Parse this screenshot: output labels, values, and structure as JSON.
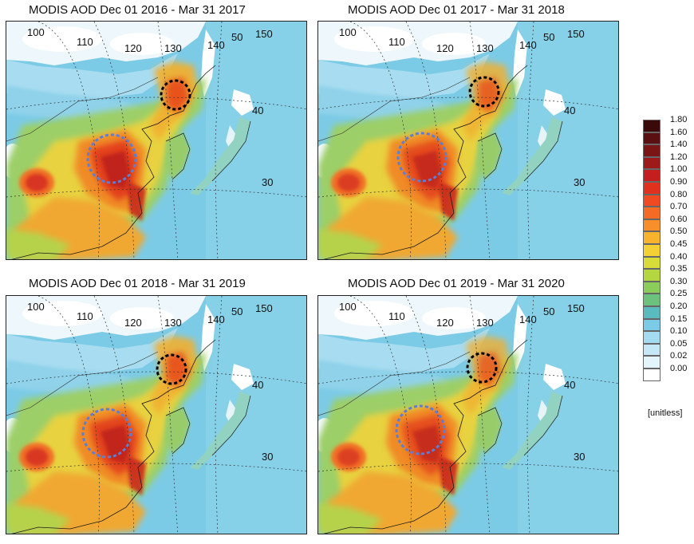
{
  "panels": [
    {
      "title": "MODIS AOD Dec 01 2016 - Mar 31 2017"
    },
    {
      "title": "MODIS AOD Dec 01 2017 - Mar 31 2018"
    },
    {
      "title": "MODIS AOD Dec 01 2018 - Mar 31 2019"
    },
    {
      "title": "MODIS AOD Dec 01 2019 - Mar 31 2020"
    }
  ],
  "map_labels": {
    "lon_100": "100",
    "lon_110": "110",
    "lon_120": "120",
    "lon_130": "130",
    "lon_140": "140",
    "lon_150": "150",
    "lat_50": "50",
    "lat_40": "40",
    "lat_30": "30"
  },
  "colorbar": {
    "ticks": [
      "1.80",
      "1.60",
      "1.40",
      "1.20",
      "1.00",
      "0.90",
      "0.80",
      "0.70",
      "0.60",
      "0.50",
      "0.45",
      "0.40",
      "0.35",
      "0.30",
      "0.25",
      "0.20",
      "0.15",
      "0.10",
      "0.05",
      "0.02",
      "0.00"
    ],
    "colors": [
      "#3a0a0a",
      "#5a1010",
      "#7a1515",
      "#9c1a1a",
      "#c41e1e",
      "#e0301e",
      "#ef4a22",
      "#f36b24",
      "#f7902a",
      "#f7b22e",
      "#f3d034",
      "#d8dc3a",
      "#b4d640",
      "#8ccc5a",
      "#6cc27c",
      "#5bbcc0",
      "#7ccbe6",
      "#a4dbf0",
      "#c6e8f6",
      "#e4f4fb",
      "#ffffff"
    ],
    "unit": "[unitless]"
  }
}
